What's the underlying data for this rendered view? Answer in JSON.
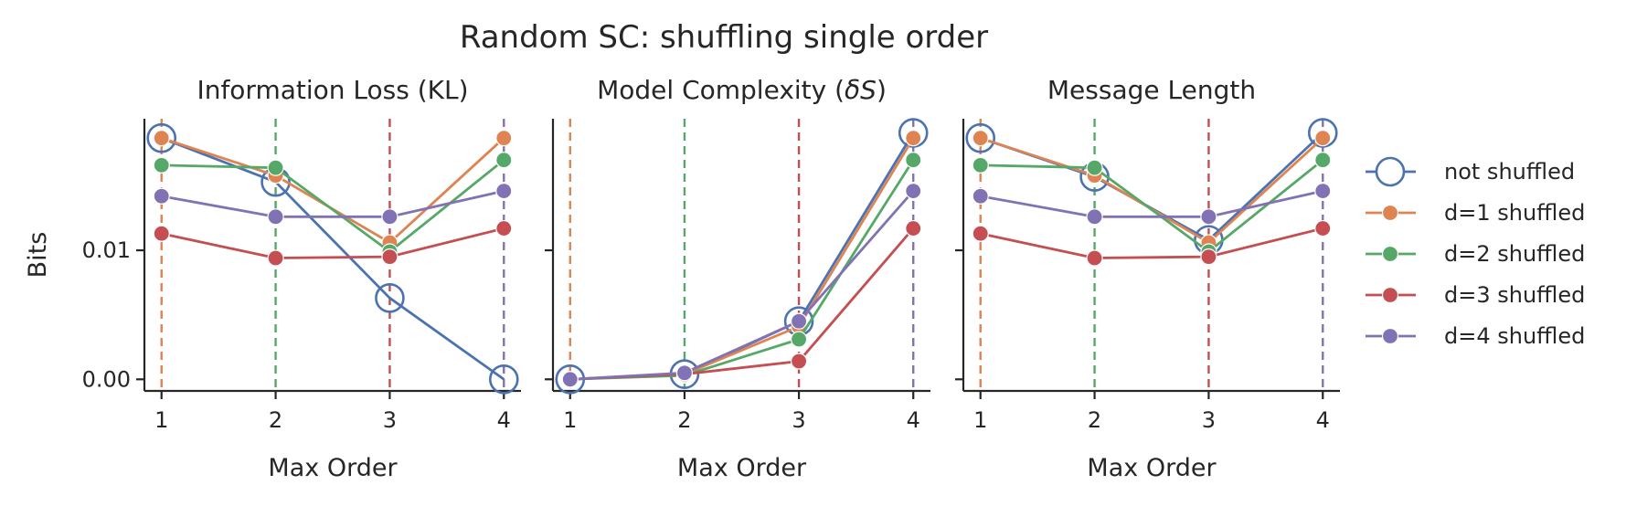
{
  "figure": {
    "suptitle": "Random SC: shuffling single order"
  },
  "chart_data": [
    {
      "type": "line",
      "title": "Information Loss (KL)",
      "xlabel": "Max Order",
      "ylabel": "Bits",
      "x": [
        1,
        2,
        3,
        4
      ],
      "yticks": [
        0.0,
        0.01
      ],
      "ytick_labels": [
        "0.00",
        "0.01"
      ],
      "ylim": [
        -0.0009,
        0.0202
      ],
      "shuffled_order_markers": [
        1,
        2,
        3,
        4
      ],
      "series": [
        {
          "name": "not shuffled",
          "values": [
            0.0187,
            0.0153,
            0.0063,
            0.0
          ]
        },
        {
          "name": "d=1 shuffled",
          "values": [
            0.0187,
            0.0158,
            0.0106,
            0.0187
          ]
        },
        {
          "name": "d=2 shuffled",
          "values": [
            0.0166,
            0.0164,
            0.0099,
            0.017
          ]
        },
        {
          "name": "d=3 shuffled",
          "values": [
            0.0113,
            0.0094,
            0.0095,
            0.0117
          ]
        },
        {
          "name": "d=4 shuffled",
          "values": [
            0.0142,
            0.0126,
            0.0126,
            0.0146
          ]
        }
      ]
    },
    {
      "type": "line",
      "title": "Model Complexity (δS)",
      "title_parts": [
        "Model Complexity (",
        "δS",
        ")"
      ],
      "xlabel": "Max Order",
      "ylabel": "",
      "x": [
        1,
        2,
        3,
        4
      ],
      "yticks": [
        0.0,
        0.01
      ],
      "ytick_labels": [
        "",
        ""
      ],
      "ylim": [
        -0.0009,
        0.0202
      ],
      "shuffled_order_markers": [
        1,
        2,
        3,
        4
      ],
      "series": [
        {
          "name": "not shuffled",
          "values": [
            0.0,
            0.0004,
            0.0045,
            0.0191
          ]
        },
        {
          "name": "d=1 shuffled",
          "values": [
            0.0,
            0.0004,
            0.0041,
            0.0187
          ]
        },
        {
          "name": "d=2 shuffled",
          "values": [
            0.0,
            0.0003,
            0.0031,
            0.017
          ]
        },
        {
          "name": "d=3 shuffled",
          "values": [
            0.0,
            0.0004,
            0.0014,
            0.0117
          ]
        },
        {
          "name": "d=4 shuffled",
          "values": [
            0.0,
            0.0005,
            0.0045,
            0.0146
          ]
        }
      ]
    },
    {
      "type": "line",
      "title": "Message Length",
      "xlabel": "Max Order",
      "ylabel": "",
      "x": [
        1,
        2,
        3,
        4
      ],
      "yticks": [
        0.0,
        0.01
      ],
      "ytick_labels": [
        "",
        ""
      ],
      "ylim": [
        -0.0009,
        0.0202
      ],
      "shuffled_order_markers": [
        1,
        2,
        3,
        4
      ],
      "series": [
        {
          "name": "not shuffled",
          "values": [
            0.0187,
            0.0157,
            0.0108,
            0.0191
          ]
        },
        {
          "name": "d=1 shuffled",
          "values": [
            0.0187,
            0.0158,
            0.0106,
            0.0187
          ]
        },
        {
          "name": "d=2 shuffled",
          "values": [
            0.0166,
            0.0164,
            0.0099,
            0.017
          ]
        },
        {
          "name": "d=3 shuffled",
          "values": [
            0.0113,
            0.0094,
            0.0095,
            0.0117
          ]
        },
        {
          "name": "d=4 shuffled",
          "values": [
            0.0142,
            0.0126,
            0.0126,
            0.0146
          ]
        }
      ]
    }
  ],
  "legend": {
    "placement": "right",
    "entries": [
      {
        "label": "not shuffled",
        "color": "#4C72B0",
        "marker": "open-circle"
      },
      {
        "label": "d=1 shuffled",
        "color": "#DD8452",
        "marker": "filled-circle"
      },
      {
        "label": "d=2 shuffled",
        "color": "#55A868",
        "marker": "filled-circle"
      },
      {
        "label": "d=3 shuffled",
        "color": "#C44E52",
        "marker": "filled-circle"
      },
      {
        "label": "d=4 shuffled",
        "color": "#8172B3",
        "marker": "filled-circle"
      }
    ]
  },
  "colors": {
    "not shuffled": "#4C72B0",
    "d=1 shuffled": "#DD8452",
    "d=2 shuffled": "#55A868",
    "d=3 shuffled": "#C44E52",
    "d=4 shuffled": "#8172B3",
    "axis": "#262626"
  }
}
